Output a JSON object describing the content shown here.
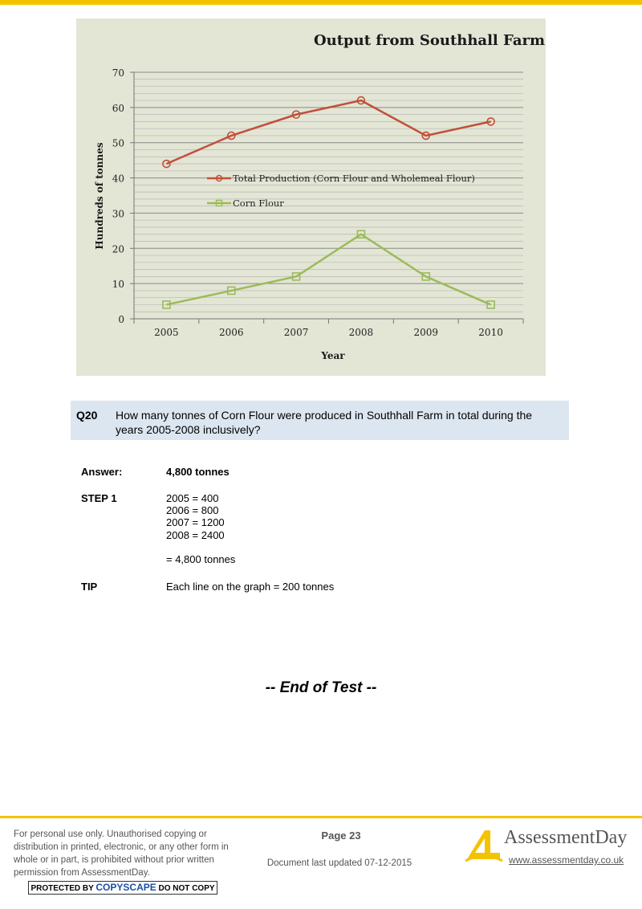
{
  "chart_data": {
    "type": "line",
    "title": "Output from Southhall Farm",
    "xlabel": "Year",
    "ylabel": "Hundreds of tonnes",
    "categories": [
      "2005",
      "2006",
      "2007",
      "2008",
      "2009",
      "2010"
    ],
    "ylim": [
      0,
      70
    ],
    "yticks": [
      "0",
      "10",
      "20",
      "30",
      "40",
      "50",
      "60",
      "70"
    ],
    "grid_step": 2,
    "legend_position": "center",
    "series": [
      {
        "name": "Total Production (Corn Flour and Wholemeal Flour)",
        "marker": "circle",
        "color": "#c0503a",
        "values": [
          44,
          52,
          58,
          62,
          52,
          56
        ]
      },
      {
        "name": "Corn Flour",
        "marker": "square",
        "color": "#9bbb59",
        "values": [
          4,
          8,
          12,
          24,
          12,
          4
        ]
      }
    ]
  },
  "question": {
    "number": "Q20",
    "text": "How many tonnes of Corn Flour were produced in Southhall Farm in total during the years 2005-2008 inclusively?"
  },
  "answer": {
    "label": "Answer:",
    "value": "4,800 tonnes",
    "step_label": "STEP 1",
    "step_lines": [
      "2005 = 400",
      "2006 = 800",
      "2007 = 1200",
      "2008 = 2400"
    ],
    "total": "= 4,800 tonnes",
    "tip_label": "TIP",
    "tip_text": "Each line on the graph = 200 tonnes"
  },
  "end_text": "-- End of Test --",
  "footer": {
    "notice": "For personal use only. Unauthorised copying or distribution in printed, electronic, or any other form in whole or in part, is prohibited without prior written permission from AssessmentDay.",
    "badge_pre": "PROTECTED BY ",
    "badge_brand": "COPYSCAPE",
    "badge_post": " DO NOT COPY",
    "page": "Page 23",
    "updated": "Document last updated 07-12-2015",
    "logo_text": "AssessmentDay",
    "logo_url": "www.assessmentday.co.uk",
    "accent": "#f4c300"
  }
}
